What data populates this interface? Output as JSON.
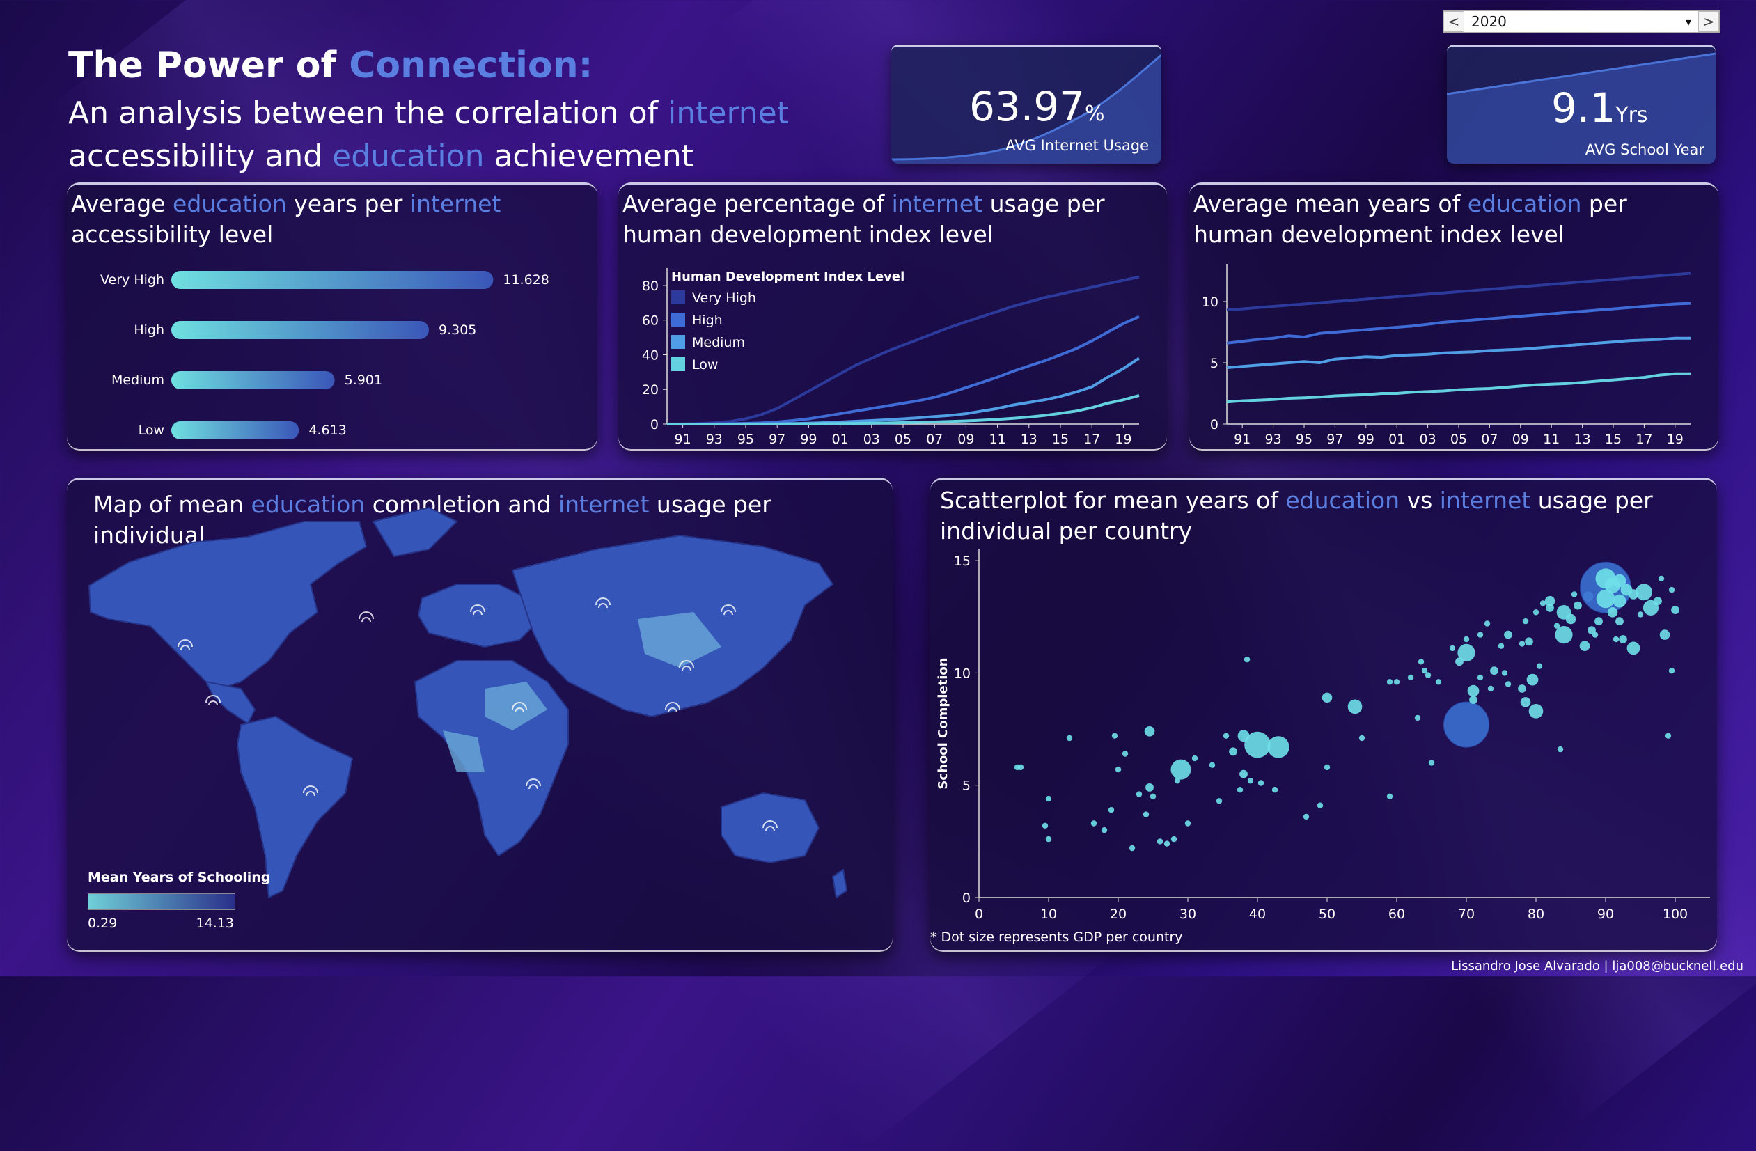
{
  "header": {
    "title_part1": "The Power of ",
    "title_highlight": "Connection:",
    "subtitle_part1": "An analysis between the correlation of ",
    "subtitle_hl1": "internet",
    "subtitle_part2": " accessibility and ",
    "subtitle_hl2": "education",
    "subtitle_part3": " achievement"
  },
  "kpis": {
    "internet": {
      "value": "63.97",
      "unit": "%",
      "label": "AVG Internet Usage"
    },
    "school": {
      "value": "9.1",
      "unit": "Yrs",
      "label": "AVG School Year"
    }
  },
  "year_filter": {
    "selected": "2020",
    "prev": "<",
    "next": ">",
    "caret": "▾"
  },
  "panels": {
    "bar": {
      "t1": "Average ",
      "hl1": "education",
      "t2": " years per ",
      "hl2": "internet",
      "t3": " accessibility level"
    },
    "internet_hdi": {
      "t1": "Average percentage of ",
      "hl1": "internet",
      "t2": " usage per human development index level"
    },
    "edu_hdi": {
      "t1": "Average mean years of ",
      "hl1": "education",
      "t2": " per human development index level"
    },
    "map": {
      "t1": "Map of mean ",
      "hl1": "education",
      "t2": " completion and ",
      "hl2": "internet",
      "t3": " usage per individual"
    },
    "scatter": {
      "t1": "Scatterplot for mean years of ",
      "hl1": "education",
      "t2": " vs ",
      "hl2": "internet",
      "t3": " usage per individual per country"
    }
  },
  "map_legend": {
    "title": "Mean Years of Schooling",
    "min": "0.29",
    "max": "14.13",
    "color_low": "#6fd0d8",
    "color_high": "#2a2f8a"
  },
  "scatter_note": "* Dot size represents GDP per country",
  "credit": "Lissandro Jose Alvarado | lja008@bucknell.edu",
  "colors": {
    "accent": "#5b7fe0",
    "very_high": "#2c3a9c",
    "high": "#3f6bd6",
    "medium": "#4f9ee6",
    "low": "#63d1e0"
  },
  "chart_data": [
    {
      "type": "bar",
      "orientation": "horizontal",
      "categories": [
        "Very High",
        "High",
        "Medium",
        "Low"
      ],
      "values": [
        11.628,
        9.305,
        5.901,
        4.613
      ],
      "value_labels": [
        "11.628",
        "9.305",
        "5.901",
        "4.613"
      ],
      "xlim": [
        0,
        12.7
      ]
    },
    {
      "type": "line",
      "legend_title": "Human Development Index Level",
      "legend_position": "top-left",
      "x_ticks": [
        "91",
        "93",
        "95",
        "97",
        "99",
        "01",
        "03",
        "05",
        "07",
        "09",
        "11",
        "13",
        "15",
        "17",
        "19"
      ],
      "x": [
        1990,
        1991,
        1992,
        1993,
        1994,
        1995,
        1996,
        1997,
        1998,
        1999,
        2000,
        2001,
        2002,
        2003,
        2004,
        2005,
        2006,
        2007,
        2008,
        2009,
        2010,
        2011,
        2012,
        2013,
        2014,
        2015,
        2016,
        2017,
        2018,
        2019,
        2020
      ],
      "ylim": [
        0,
        86
      ],
      "y_ticks": [
        0,
        20,
        40,
        60,
        80
      ],
      "series": [
        {
          "name": "Very High",
          "color": "#2c3a9c",
          "values": [
            0,
            0.1,
            0.3,
            0.7,
            1.5,
            3,
            5.5,
            9,
            14,
            19,
            24,
            29,
            34,
            38,
            42,
            45.5,
            49,
            52.5,
            56,
            59,
            62,
            65,
            68,
            70.5,
            73,
            75,
            77,
            79,
            81,
            83,
            85
          ]
        },
        {
          "name": "High",
          "color": "#3f6bd6",
          "values": [
            0,
            0,
            0,
            0.1,
            0.2,
            0.4,
            0.7,
            1.2,
            2,
            3,
            4.5,
            6,
            7.5,
            9,
            10.5,
            12,
            13.5,
            15.5,
            18,
            21,
            24,
            27,
            30.5,
            33.5,
            36.5,
            40,
            43.5,
            48,
            53,
            58,
            62
          ]
        },
        {
          "name": "Medium",
          "color": "#4f9ee6",
          "values": [
            0,
            0,
            0,
            0,
            0,
            0.1,
            0.1,
            0.2,
            0.3,
            0.5,
            0.8,
            1.2,
            1.6,
            2,
            2.5,
            3,
            3.6,
            4.3,
            5,
            6,
            7.5,
            9,
            11,
            12.5,
            14,
            16,
            18.5,
            21.5,
            27,
            32,
            38
          ]
        },
        {
          "name": "Low",
          "color": "#63d1e0",
          "values": [
            0,
            0,
            0,
            0,
            0,
            0,
            0,
            0,
            0.1,
            0.1,
            0.2,
            0.3,
            0.4,
            0.5,
            0.6,
            0.8,
            1,
            1.2,
            1.5,
            1.8,
            2.2,
            2.7,
            3.3,
            4,
            5,
            6.2,
            7.5,
            9.5,
            12,
            14,
            16.5
          ]
        }
      ]
    },
    {
      "type": "line",
      "x_ticks": [
        "91",
        "93",
        "95",
        "97",
        "99",
        "01",
        "03",
        "05",
        "07",
        "09",
        "11",
        "13",
        "15",
        "17",
        "19"
      ],
      "x": [
        1990,
        1991,
        1992,
        1993,
        1994,
        1995,
        1996,
        1997,
        1998,
        1999,
        2000,
        2001,
        2002,
        2003,
        2004,
        2005,
        2006,
        2007,
        2008,
        2009,
        2010,
        2011,
        2012,
        2013,
        2014,
        2015,
        2016,
        2017,
        2018,
        2019,
        2020
      ],
      "ylim": [
        0,
        12.5
      ],
      "y_ticks": [
        0,
        5,
        10
      ],
      "series": [
        {
          "name": "Very High",
          "color": "#2c3a9c",
          "values": [
            9.3,
            9.4,
            9.5,
            9.6,
            9.7,
            9.8,
            9.9,
            10,
            10.1,
            10.2,
            10.3,
            10.4,
            10.5,
            10.6,
            10.7,
            10.8,
            10.9,
            11,
            11.1,
            11.2,
            11.3,
            11.4,
            11.5,
            11.6,
            11.7,
            11.8,
            11.9,
            12,
            12.1,
            12.2,
            12.3
          ]
        },
        {
          "name": "High",
          "color": "#3f6bd6",
          "values": [
            6.6,
            6.75,
            6.9,
            7.0,
            7.2,
            7.1,
            7.4,
            7.5,
            7.6,
            7.7,
            7.8,
            7.9,
            8.0,
            8.15,
            8.3,
            8.4,
            8.5,
            8.6,
            8.7,
            8.8,
            8.9,
            9.0,
            9.1,
            9.2,
            9.3,
            9.4,
            9.5,
            9.6,
            9.7,
            9.8,
            9.85
          ]
        },
        {
          "name": "Medium",
          "color": "#4f9ee6",
          "values": [
            4.6,
            4.7,
            4.8,
            4.9,
            5.0,
            5.1,
            5.0,
            5.3,
            5.4,
            5.5,
            5.45,
            5.6,
            5.65,
            5.7,
            5.8,
            5.85,
            5.9,
            6.0,
            6.05,
            6.1,
            6.2,
            6.3,
            6.4,
            6.5,
            6.6,
            6.7,
            6.8,
            6.85,
            6.9,
            7.0,
            7.0
          ]
        },
        {
          "name": "Low",
          "color": "#63d1e0",
          "values": [
            1.8,
            1.9,
            1.95,
            2.0,
            2.1,
            2.15,
            2.2,
            2.3,
            2.35,
            2.4,
            2.5,
            2.5,
            2.6,
            2.65,
            2.7,
            2.8,
            2.85,
            2.9,
            3.0,
            3.1,
            3.2,
            3.25,
            3.3,
            3.4,
            3.5,
            3.6,
            3.7,
            3.8,
            4.0,
            4.1,
            4.1
          ]
        }
      ]
    },
    {
      "type": "scatter",
      "ylabel": "School Completion",
      "xlim": [
        0,
        105
      ],
      "ylim": [
        0,
        15.5
      ],
      "x_ticks": [
        0,
        10,
        20,
        30,
        40,
        50,
        60,
        70,
        80,
        90,
        100
      ],
      "y_ticks": [
        0,
        5,
        10,
        15
      ],
      "points": [
        {
          "x": 5.5,
          "y": 5.8,
          "gdp": 1
        },
        {
          "x": 6,
          "y": 5.8,
          "gdp": 1
        },
        {
          "x": 9.5,
          "y": 3.2,
          "gdp": 1
        },
        {
          "x": 10,
          "y": 2.6,
          "gdp": 1
        },
        {
          "x": 10,
          "y": 4.4,
          "gdp": 1
        },
        {
          "x": 13,
          "y": 7.1,
          "gdp": 1
        },
        {
          "x": 16.5,
          "y": 3.3,
          "gdp": 1
        },
        {
          "x": 18,
          "y": 3,
          "gdp": 1
        },
        {
          "x": 19,
          "y": 3.9,
          "gdp": 1
        },
        {
          "x": 19.5,
          "y": 7.2,
          "gdp": 1
        },
        {
          "x": 20,
          "y": 5.7,
          "gdp": 1
        },
        {
          "x": 21,
          "y": 6.4,
          "gdp": 1
        },
        {
          "x": 22,
          "y": 2.2,
          "gdp": 1
        },
        {
          "x": 23,
          "y": 4.6,
          "gdp": 1
        },
        {
          "x": 24,
          "y": 3.7,
          "gdp": 1
        },
        {
          "x": 24.5,
          "y": 4.9,
          "gdp": 2
        },
        {
          "x": 24.5,
          "y": 7.4,
          "gdp": 3
        },
        {
          "x": 25,
          "y": 4.5,
          "gdp": 1
        },
        {
          "x": 26,
          "y": 2.5,
          "gdp": 1
        },
        {
          "x": 27,
          "y": 2.4,
          "gdp": 1
        },
        {
          "x": 28,
          "y": 2.6,
          "gdp": 1
        },
        {
          "x": 28.5,
          "y": 5.2,
          "gdp": 1
        },
        {
          "x": 29,
          "y": 5.7,
          "gdp": 12
        },
        {
          "x": 30,
          "y": 3.3,
          "gdp": 1
        },
        {
          "x": 31,
          "y": 6.2,
          "gdp": 1
        },
        {
          "x": 33.5,
          "y": 5.9,
          "gdp": 1
        },
        {
          "x": 34.5,
          "y": 4.3,
          "gdp": 1
        },
        {
          "x": 35.5,
          "y": 7.2,
          "gdp": 1
        },
        {
          "x": 36.5,
          "y": 6.5,
          "gdp": 2
        },
        {
          "x": 37.5,
          "y": 4.8,
          "gdp": 1
        },
        {
          "x": 38,
          "y": 5.5,
          "gdp": 2
        },
        {
          "x": 38,
          "y": 7.2,
          "gdp": 4
        },
        {
          "x": 38.5,
          "y": 10.6,
          "gdp": 1
        },
        {
          "x": 39,
          "y": 5.2,
          "gdp": 1
        },
        {
          "x": 40,
          "y": 6.8,
          "gdp": 20
        },
        {
          "x": 40.5,
          "y": 5.1,
          "gdp": 1
        },
        {
          "x": 42.5,
          "y": 4.8,
          "gdp": 1
        },
        {
          "x": 43,
          "y": 6.7,
          "gdp": 14
        },
        {
          "x": 47,
          "y": 3.6,
          "gdp": 1
        },
        {
          "x": 49,
          "y": 4.1,
          "gdp": 1
        },
        {
          "x": 50,
          "y": 8.9,
          "gdp": 3
        },
        {
          "x": 50,
          "y": 5.8,
          "gdp": 1
        },
        {
          "x": 54,
          "y": 8.5,
          "gdp": 6
        },
        {
          "x": 55,
          "y": 7.1,
          "gdp": 1
        },
        {
          "x": 59,
          "y": 9.6,
          "gdp": 1
        },
        {
          "x": 59,
          "y": 4.5,
          "gdp": 1
        },
        {
          "x": 60,
          "y": 9.6,
          "gdp": 1
        },
        {
          "x": 62,
          "y": 9.8,
          "gdp": 1
        },
        {
          "x": 63,
          "y": 8,
          "gdp": 1
        },
        {
          "x": 63.5,
          "y": 10.5,
          "gdp": 1
        },
        {
          "x": 64,
          "y": 10.1,
          "gdp": 1
        },
        {
          "x": 64.5,
          "y": 9.9,
          "gdp": 1
        },
        {
          "x": 65,
          "y": 6,
          "gdp": 1
        },
        {
          "x": 66,
          "y": 9.6,
          "gdp": 1
        },
        {
          "x": 68,
          "y": 11.1,
          "gdp": 1
        },
        {
          "x": 69,
          "y": 10.5,
          "gdp": 2
        },
        {
          "x": 70,
          "y": 7.7,
          "gdp": 60
        },
        {
          "x": 70,
          "y": 10.9,
          "gdp": 9
        },
        {
          "x": 70,
          "y": 11.5,
          "gdp": 1
        },
        {
          "x": 71,
          "y": 8.8,
          "gdp": 2
        },
        {
          "x": 71,
          "y": 9.2,
          "gdp": 4
        },
        {
          "x": 72,
          "y": 11.7,
          "gdp": 1
        },
        {
          "x": 72,
          "y": 9.8,
          "gdp": 1
        },
        {
          "x": 73,
          "y": 12.2,
          "gdp": 1
        },
        {
          "x": 73.5,
          "y": 9.3,
          "gdp": 1
        },
        {
          "x": 74,
          "y": 10.1,
          "gdp": 2
        },
        {
          "x": 75,
          "y": 11.2,
          "gdp": 1
        },
        {
          "x": 75.5,
          "y": 10,
          "gdp": 1
        },
        {
          "x": 76,
          "y": 9.5,
          "gdp": 1
        },
        {
          "x": 76,
          "y": 11.7,
          "gdp": 2
        },
        {
          "x": 78,
          "y": 11.3,
          "gdp": 1
        },
        {
          "x": 78,
          "y": 9.3,
          "gdp": 2
        },
        {
          "x": 78.5,
          "y": 8.7,
          "gdp": 3
        },
        {
          "x": 78.5,
          "y": 12.3,
          "gdp": 1
        },
        {
          "x": 79,
          "y": 11.4,
          "gdp": 2
        },
        {
          "x": 79.5,
          "y": 9.7,
          "gdp": 4
        },
        {
          "x": 80,
          "y": 8.3,
          "gdp": 6
        },
        {
          "x": 80,
          "y": 12.7,
          "gdp": 1
        },
        {
          "x": 80.5,
          "y": 10.3,
          "gdp": 1
        },
        {
          "x": 81,
          "y": 13.1,
          "gdp": 1
        },
        {
          "x": 82,
          "y": 12.9,
          "gdp": 2
        },
        {
          "x": 82,
          "y": 13.2,
          "gdp": 3
        },
        {
          "x": 83,
          "y": 12.1,
          "gdp": 1
        },
        {
          "x": 83.5,
          "y": 6.6,
          "gdp": 1
        },
        {
          "x": 84,
          "y": 11.7,
          "gdp": 9
        },
        {
          "x": 84,
          "y": 12.7,
          "gdp": 6
        },
        {
          "x": 85,
          "y": 12.4,
          "gdp": 3
        },
        {
          "x": 85.5,
          "y": 13.5,
          "gdp": 1
        },
        {
          "x": 86,
          "y": 13,
          "gdp": 2
        },
        {
          "x": 87,
          "y": 11.2,
          "gdp": 3
        },
        {
          "x": 87.5,
          "y": 13.4,
          "gdp": 3
        },
        {
          "x": 88,
          "y": 11.9,
          "gdp": 2
        },
        {
          "x": 88.5,
          "y": 11.7,
          "gdp": 1
        },
        {
          "x": 89,
          "y": 12.3,
          "gdp": 2
        },
        {
          "x": 90,
          "y": 13.8,
          "gdp": 75
        },
        {
          "x": 90,
          "y": 14.2,
          "gdp": 12
        },
        {
          "x": 90,
          "y": 13.3,
          "gdp": 10
        },
        {
          "x": 91,
          "y": 13.9,
          "gdp": 7
        },
        {
          "x": 91,
          "y": 12.7,
          "gdp": 3
        },
        {
          "x": 91.5,
          "y": 11.5,
          "gdp": 1
        },
        {
          "x": 92,
          "y": 14.1,
          "gdp": 5
        },
        {
          "x": 92,
          "y": 13.2,
          "gdp": 5
        },
        {
          "x": 92,
          "y": 12.3,
          "gdp": 2
        },
        {
          "x": 92.5,
          "y": 11.5,
          "gdp": 2
        },
        {
          "x": 93,
          "y": 13.7,
          "gdp": 4
        },
        {
          "x": 94,
          "y": 11.1,
          "gdp": 5
        },
        {
          "x": 94,
          "y": 13.5,
          "gdp": 3
        },
        {
          "x": 95,
          "y": 12.6,
          "gdp": 1
        },
        {
          "x": 95.5,
          "y": 13.6,
          "gdp": 8
        },
        {
          "x": 96.5,
          "y": 12.9,
          "gdp": 7
        },
        {
          "x": 97.5,
          "y": 13.2,
          "gdp": 2
        },
        {
          "x": 98,
          "y": 14.2,
          "gdp": 1
        },
        {
          "x": 98.5,
          "y": 11.7,
          "gdp": 3
        },
        {
          "x": 99,
          "y": 7.2,
          "gdp": 1
        },
        {
          "x": 99.5,
          "y": 10.1,
          "gdp": 1
        },
        {
          "x": 99.5,
          "y": 13.7,
          "gdp": 1
        },
        {
          "x": 100,
          "y": 12.8,
          "gdp": 2
        }
      ]
    }
  ]
}
